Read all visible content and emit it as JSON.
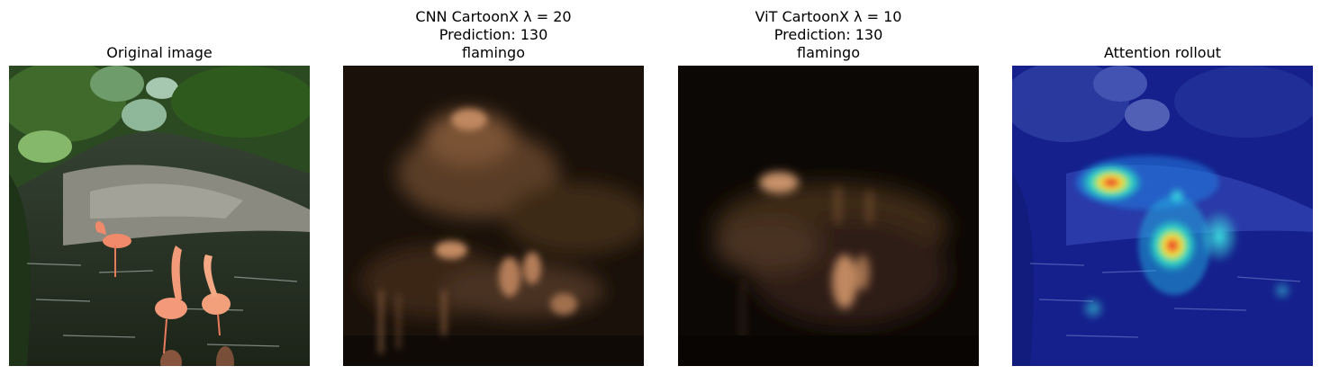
{
  "panels": [
    {
      "title_lines": [
        "Original image"
      ]
    },
    {
      "title_lines": [
        "CNN CartoonX λ = 20",
        "Prediction: 130",
        "flamingo"
      ]
    },
    {
      "title_lines": [
        "ViT CartoonX λ = 10",
        "Prediction: 130",
        "flamingo"
      ]
    },
    {
      "title_lines": [
        "Attention rollout"
      ]
    }
  ],
  "colors": {
    "background": "#ffffff",
    "copper_dark": "#0b0704",
    "copper_light": "#e3a47a",
    "jet_blue": "#1a2fd0",
    "jet_red": "#e8202a"
  }
}
